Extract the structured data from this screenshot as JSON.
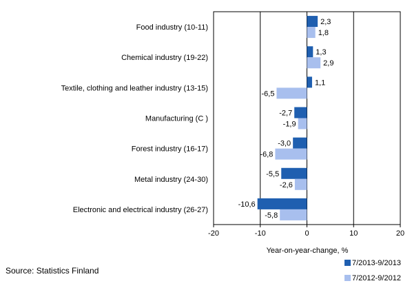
{
  "chart_data": {
    "type": "bar",
    "orientation": "horizontal",
    "categories": [
      "Food industry (10-11)",
      "Chemical industry (19-22)",
      "Textile, clothing and leather industry (13-15)",
      "Manufacturing (C )",
      "Forest industry (16-17)",
      "Metal industry (24-30)",
      "Electronic and electrical industry (26-27)"
    ],
    "series": [
      {
        "name": "7/2013-9/2013",
        "color": "#1f5fb0",
        "values": [
          2.3,
          1.3,
          1.1,
          -2.7,
          -3.0,
          -5.5,
          -10.6
        ],
        "labels": [
          "2,3",
          "1,3",
          "1,1",
          "-2,7",
          "-3,0",
          "-5,5",
          "-10,6"
        ]
      },
      {
        "name": "7/2012-9/2012",
        "color": "#a8bfee",
        "values": [
          1.8,
          2.9,
          -6.5,
          -1.9,
          -6.8,
          -2.6,
          -5.8
        ],
        "labels": [
          "1,8",
          "2,9",
          "-6,5",
          "-1,9",
          "-6,8",
          "-2,6",
          "-5,8"
        ]
      }
    ],
    "xlim": [
      -20,
      20
    ],
    "xticks": [
      -20,
      -10,
      0,
      10,
      20
    ],
    "xtick_labels": [
      "-20",
      "-10",
      "0",
      "10",
      "20"
    ],
    "xlabel": "Year-on-year-change, %",
    "grid": "vertical",
    "legend_position": "bottom-right"
  },
  "source": "Source: Statistics Finland"
}
